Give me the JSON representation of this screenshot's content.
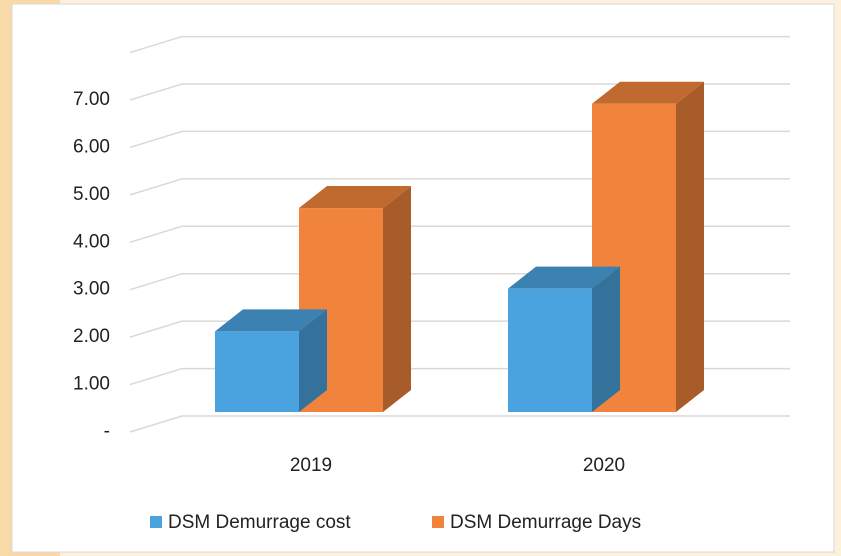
{
  "chart_data": {
    "type": "bar3d",
    "categories": [
      "2019",
      "2020"
    ],
    "series": [
      {
        "name": "DSM Demurrage cost",
        "color": "#4aa3df",
        "values": [
          1.7,
          2.6
        ]
      },
      {
        "name": "DSM Demurrage Days",
        "color": "#f0843c",
        "values": [
          4.3,
          6.5
        ]
      }
    ],
    "ylim": [
      0,
      8
    ],
    "yticks": [
      {
        "value": 0,
        "label": "-"
      },
      {
        "value": 1,
        "label": "1.00"
      },
      {
        "value": 2,
        "label": "2.00"
      },
      {
        "value": 3,
        "label": "3.00"
      },
      {
        "value": 4,
        "label": "4.00"
      },
      {
        "value": 5,
        "label": "5.00"
      },
      {
        "value": 6,
        "label": "6.00"
      },
      {
        "value": 7,
        "label": "7.00"
      }
    ],
    "grid": true,
    "legend": "bottom"
  }
}
